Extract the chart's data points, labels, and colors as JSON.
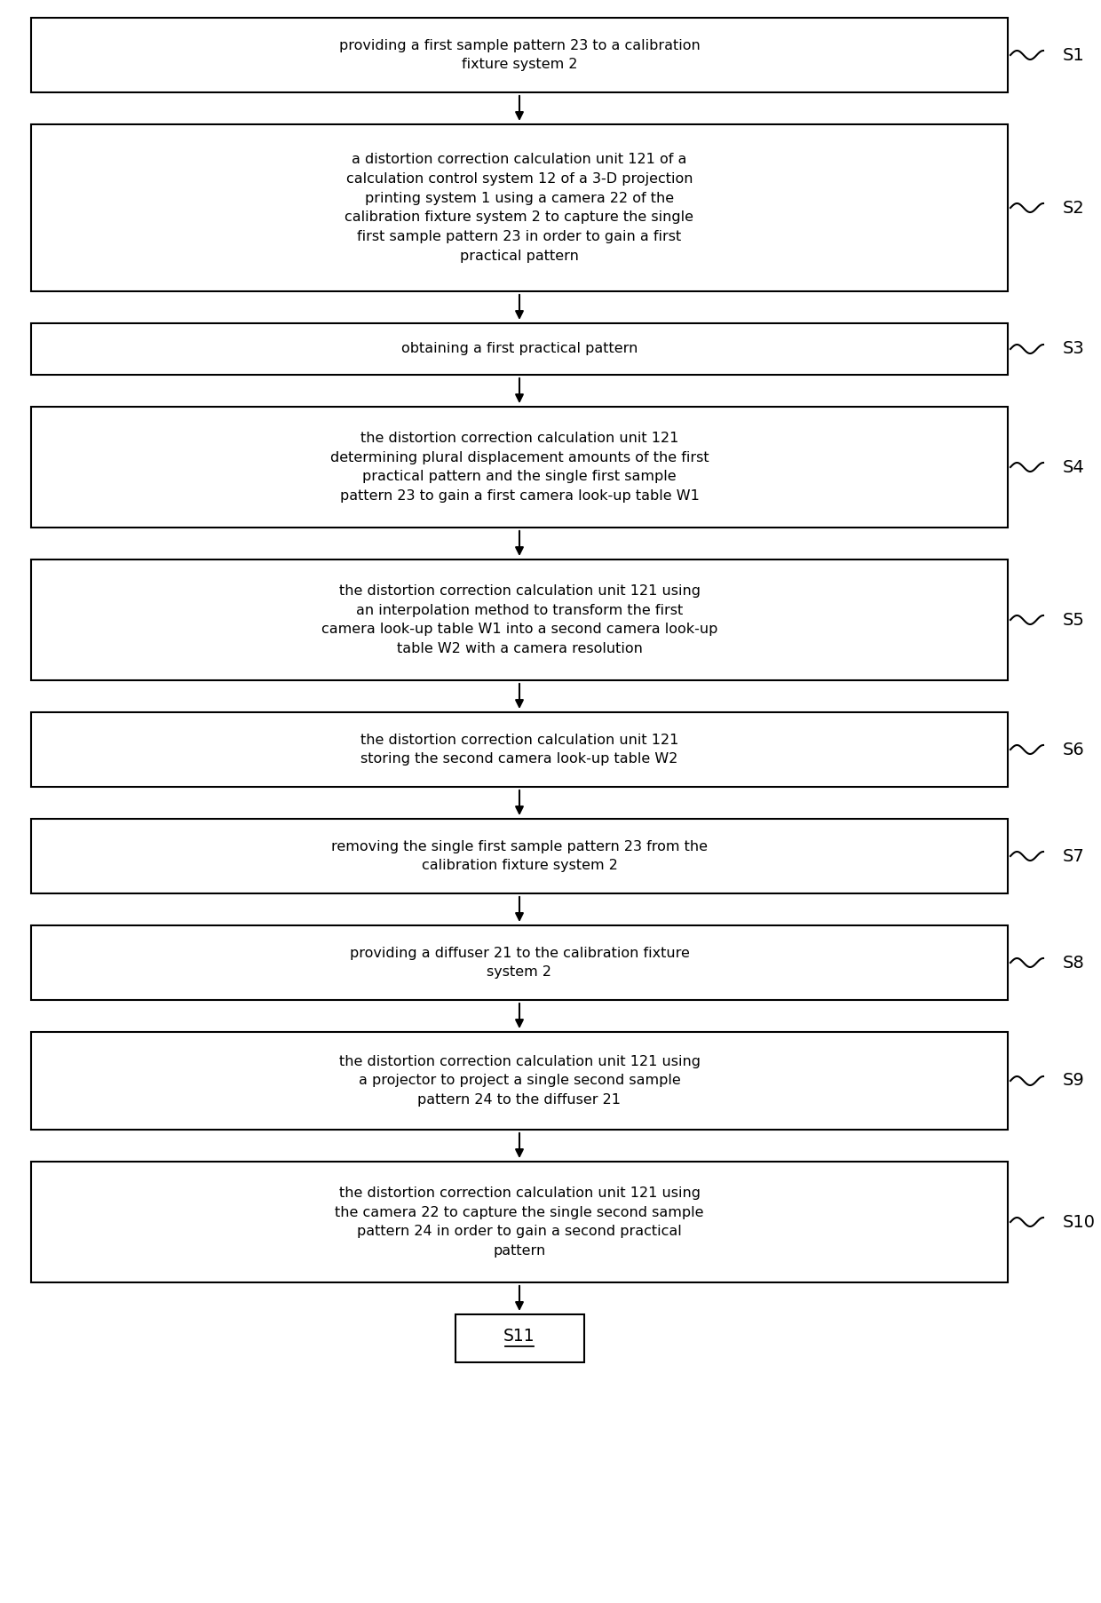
{
  "background_color": "#ffffff",
  "box_color": "#ffffff",
  "box_edge_color": "#000000",
  "text_color": "#000000",
  "arrow_color": "#000000",
  "label_color": "#000000",
  "font_family": "Courier New",
  "font_size": 11.5,
  "label_font_size": 14,
  "steps": [
    {
      "id": "S1",
      "text": "providing a first sample pattern 23 to a calibration\nfixture system 2",
      "lines": 2
    },
    {
      "id": "S2",
      "text": "a distortion correction calculation unit 121 of a\ncalculation control system 12 of a 3-D projection\nprinting system 1 using a camera 22 of the\ncalibration fixture system 2 to capture the single\nfirst sample pattern 23 in order to gain a first\npractical pattern",
      "lines": 6
    },
    {
      "id": "S3",
      "text": "obtaining a first practical pattern",
      "lines": 1
    },
    {
      "id": "S4",
      "text": "the distortion correction calculation unit 121\ndetermining plural displacement amounts of the first\npractical pattern and the single first sample\npattern 23 to gain a first camera look-up table W1",
      "lines": 4
    },
    {
      "id": "S5",
      "text": "the distortion correction calculation unit 121 using\nan interpolation method to transform the first\ncamera look-up table W1 into a second camera look-up\ntable W2 with a camera resolution",
      "lines": 4
    },
    {
      "id": "S6",
      "text": "the distortion correction calculation unit 121\nstoring the second camera look-up table W2",
      "lines": 2
    },
    {
      "id": "S7",
      "text": "removing the single first sample pattern 23 from the\ncalibration fixture system 2",
      "lines": 2
    },
    {
      "id": "S8",
      "text": "providing a diffuser 21 to the calibration fixture\nsystem 2",
      "lines": 2
    },
    {
      "id": "S9",
      "text": "the distortion correction calculation unit 121 using\na projector to project a single second sample\npattern 24 to the diffuser 21",
      "lines": 3
    },
    {
      "id": "S10",
      "text": "the distortion correction calculation unit 121 using\nthe camera 22 to capture the single second sample\npattern 24 in order to gain a second practical\npattern",
      "lines": 4
    },
    {
      "id": "S11",
      "text": "S11",
      "lines": 1,
      "is_label_box": true
    }
  ]
}
